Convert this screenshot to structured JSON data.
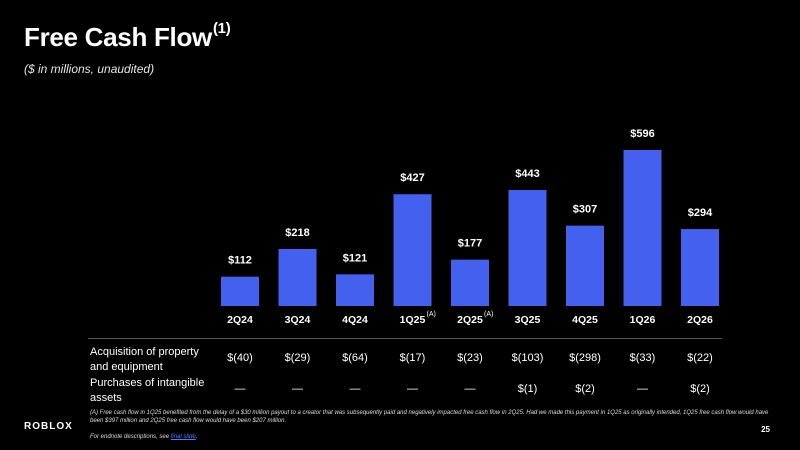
{
  "title": "Free Cash Flow",
  "title_superscript": "(1)",
  "subtitle": "($ in millions, unaudited)",
  "chart_data": {
    "type": "bar",
    "categories": [
      "2Q24",
      "3Q24",
      "4Q24",
      "1Q25",
      "2Q25",
      "3Q25",
      "4Q25",
      "1Q26",
      "2Q26"
    ],
    "values": [
      112,
      218,
      121,
      427,
      177,
      443,
      307,
      596,
      294
    ],
    "value_labels": [
      "$112",
      "$218",
      "$121",
      "$427",
      "$177",
      "$443",
      "$307",
      "$596",
      "$294"
    ],
    "category_marks": [
      "",
      "",
      "",
      "(A)",
      "(A)",
      "",
      "",
      "",
      ""
    ],
    "bar_color": "#4361ee"
  },
  "table": {
    "rows": [
      {
        "label": "Acquisition of property and equipment",
        "cells": [
          "$(40)",
          "$(29)",
          "$(64)",
          "$(17)",
          "$(23)",
          "$(103)",
          "$(298)",
          "$(33)",
          "$(22)"
        ]
      },
      {
        "label": "Purchases of intangible assets",
        "cells": [
          "—",
          "—",
          "—",
          "—",
          "—",
          "$(1)",
          "$(2)",
          "—",
          "$(2)"
        ]
      }
    ]
  },
  "logo_text": "ROBLOX",
  "footnote": "(A) Free cash flow in 1Q25 benefited from the delay of a $30 million payout to a creator that was subsequently paid and negatively impacted free cash flow in 2Q25. Had we made this payment in 1Q25 as originally intended, 1Q25 free cash flow would have been $397 million and 2Q25 free cash flow would have been $207 million.",
  "endnote_prefix": "For endnote descriptions, see ",
  "endnote_link": "final slide",
  "endnote_suffix": ".",
  "page_number": "25"
}
